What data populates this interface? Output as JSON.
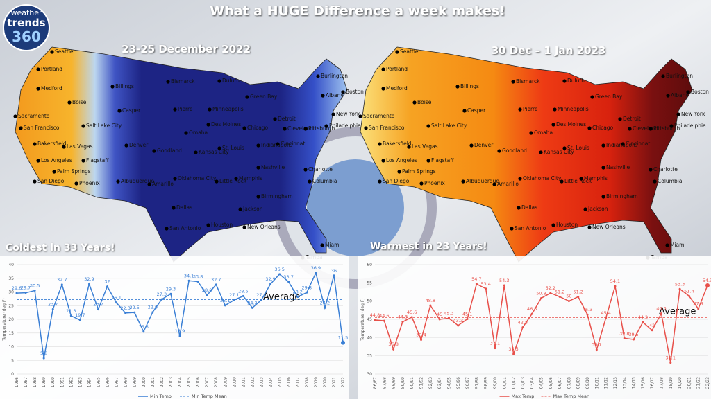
{
  "header": {
    "title": "What a HUGE Difference a week makes!"
  },
  "logo": {
    "line1": "weather",
    "line2": "trends",
    "line3": "360"
  },
  "maps": [
    {
      "subtitle": "23-25 December 2022",
      "caption": "Coldest in 33 Years!"
    },
    {
      "subtitle": "30 Dec – 1 Jan 2023",
      "caption": "Warmest in 23 Years!"
    }
  ],
  "cities": [
    "Seattle",
    "Portland",
    "Medford",
    "Boise",
    "Sacramento",
    "San Francisco",
    "Salt Lake City",
    "Bakersfield",
    "Las Vegas",
    "Los Angeles",
    "Palm Springs",
    "Flagstaff",
    "San Diego",
    "Phoenix",
    "Albuquerque",
    "Denver",
    "Billings",
    "Casper",
    "Bismarck",
    "Pierre",
    "Omaha",
    "Goodland",
    "Kansas City",
    "Amarillo",
    "Oklahoma City",
    "Dallas",
    "San Antonio",
    "Houston",
    "Little Rock",
    "Memphis",
    "Jackson",
    "New Orleans",
    "Birmingham",
    "Nashville",
    "St. Louis",
    "Des Moines",
    "Minneapolis",
    "Duluth",
    "Green Bay",
    "Chicago",
    "Indianapolis",
    "Cincinnati",
    "Detroit",
    "Cleveland",
    "Pittsburgh",
    "Philadelphia",
    "New York",
    "Boston",
    "Albany",
    "Burlington",
    "Charlotte",
    "Columbia",
    "Tampa",
    "Miami"
  ],
  "chart_data": [
    {
      "type": "line",
      "y_label": "Temperature (deg F)",
      "annotation": "Average",
      "categories": [
        "1986",
        "1987",
        "1988",
        "1989",
        "1990",
        "1991",
        "1992",
        "1993",
        "1994",
        "1995",
        "1996",
        "1997",
        "1998",
        "1999",
        "2000",
        "2001",
        "2002",
        "2003",
        "2004",
        "2005",
        "2006",
        "2007",
        "2008",
        "2009",
        "2010",
        "2011",
        "2012",
        "2013",
        "2014",
        "2015",
        "2016",
        "2017",
        "2018",
        "2019",
        "2020",
        "2021",
        "2022"
      ],
      "series": [
        {
          "name": "Min Temp",
          "color": "#3a7fd5",
          "values": [
            29.6,
            29.7,
            30.5,
            5.8,
            23.7,
            32.7,
            21.3,
            19.7,
            32.9,
            23.7,
            32,
            26.1,
            22.3,
            22.5,
            15.5,
            22.6,
            27.3,
            29.3,
            13.9,
            34.1,
            33.8,
            28.8,
            32.7,
            25.1,
            27.1,
            28.5,
            24.2,
            27.1,
            32.9,
            36.5,
            33.7,
            28.2,
            29.8,
            36.9,
            24.2,
            36,
            11.5
          ]
        }
      ],
      "mean": {
        "name": "Min Temp Mean",
        "value": 27.2,
        "color": "#3a7fd5"
      },
      "ylim": [
        0,
        40
      ],
      "yticks": [
        0,
        5,
        10,
        15,
        20,
        25,
        30,
        35,
        40
      ],
      "grid": true
    },
    {
      "type": "line",
      "y_label": "Temperature (deg F)",
      "annotation": "Average",
      "categories": [
        "86/87",
        "87/88",
        "88/89",
        "89/90",
        "90/91",
        "91/92",
        "92/93",
        "93/94",
        "94/95",
        "95/96",
        "96/97",
        "97/98",
        "98/99",
        "99/00",
        "00/01",
        "01/02",
        "02/03",
        "03/04",
        "04/05",
        "05/06",
        "06/07",
        "07/08",
        "08/09",
        "09/10",
        "10/11",
        "11/12",
        "12/13",
        "13/14",
        "14/15",
        "15/16",
        "16/17",
        "17/18",
        "18/19",
        "19/20",
        "20/21",
        "21/22",
        "22/23"
      ],
      "series": [
        {
          "name": "Max Temp",
          "color": "#e8504a",
          "values": [
            44.8,
            44.6,
            36.8,
            44.3,
            45.6,
            39.4,
            48.8,
            45,
            45.3,
            43.3,
            45.1,
            54.7,
            53.4,
            37.1,
            54.3,
            35.5,
            42.8,
            46.5,
            50.8,
            52.2,
            51.2,
            50,
            51.2,
            46.3,
            36.7,
            45.4,
            54.1,
            39.8,
            39.5,
            44.2,
            42,
            46.6,
            33.1,
            53.3,
            51.4,
            47.9,
            54.3
          ]
        }
      ],
      "mean": {
        "name": "Max Temp Mean",
        "value": 45.5,
        "color": "#e8504a"
      },
      "ylim": [
        30,
        60
      ],
      "yticks": [
        30,
        35,
        40,
        45,
        50,
        55,
        60
      ],
      "grid": true
    }
  ]
}
